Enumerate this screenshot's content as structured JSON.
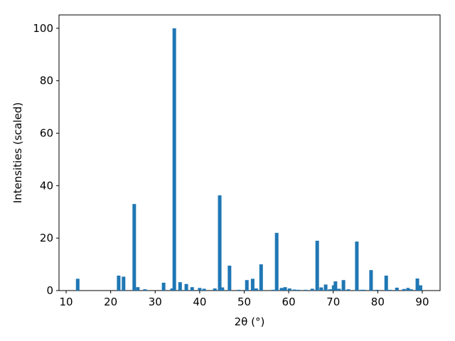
{
  "chart_data": {
    "type": "bar",
    "x_label": "2θ (°)",
    "y_label": "Intensities (scaled)",
    "color": "#1f77b4",
    "x": [
      12.6,
      21.8,
      22.9,
      25.3,
      26.1,
      27.7,
      31.9,
      33.8,
      34.3,
      35.6,
      37.0,
      38.3,
      40.0,
      41.0,
      43.4,
      44.5,
      45.1,
      46.7,
      48.8,
      50.6,
      51.9,
      52.7,
      53.8,
      56.5,
      57.3,
      58.4,
      59.2,
      60.2,
      61.3,
      62.2,
      63.8,
      65.3,
      66.4,
      67.3,
      68.3,
      69.3,
      70.1,
      70.5,
      71.3,
      72.3,
      73.4,
      75.3,
      76.3,
      76.9,
      78.5,
      79.8,
      81.9,
      82.7,
      84.3,
      85.9,
      86.8,
      87.5,
      88.9,
      89.6
    ],
    "values": [
      4.5,
      5.7,
      5.3,
      33,
      1.3,
      0.5,
      3,
      0.8,
      100,
      3.2,
      2.5,
      1.3,
      1.0,
      0.7,
      0.8,
      36.3,
      1.2,
      9.5,
      0.3,
      4,
      4.5,
      0.8,
      10,
      0.3,
      22,
      1,
      1.3,
      0.8,
      0.4,
      0.3,
      0.3,
      0.7,
      19,
      1.2,
      2.3,
      0.5,
      2,
      3.5,
      0.7,
      4,
      0.5,
      18.7,
      0.3,
      0.3,
      7.8,
      0.3,
      5.7,
      0.3,
      1.1,
      0.6,
      1,
      0.5,
      4.6,
      2
    ],
    "xlim": [
      8.4,
      94.0
    ],
    "ylim": [
      0,
      105.1
    ],
    "xticks": [
      10,
      20,
      30,
      40,
      50,
      60,
      70,
      80,
      90
    ],
    "yticks": [
      0,
      20,
      40,
      60,
      80,
      100
    ],
    "grid": false
  }
}
